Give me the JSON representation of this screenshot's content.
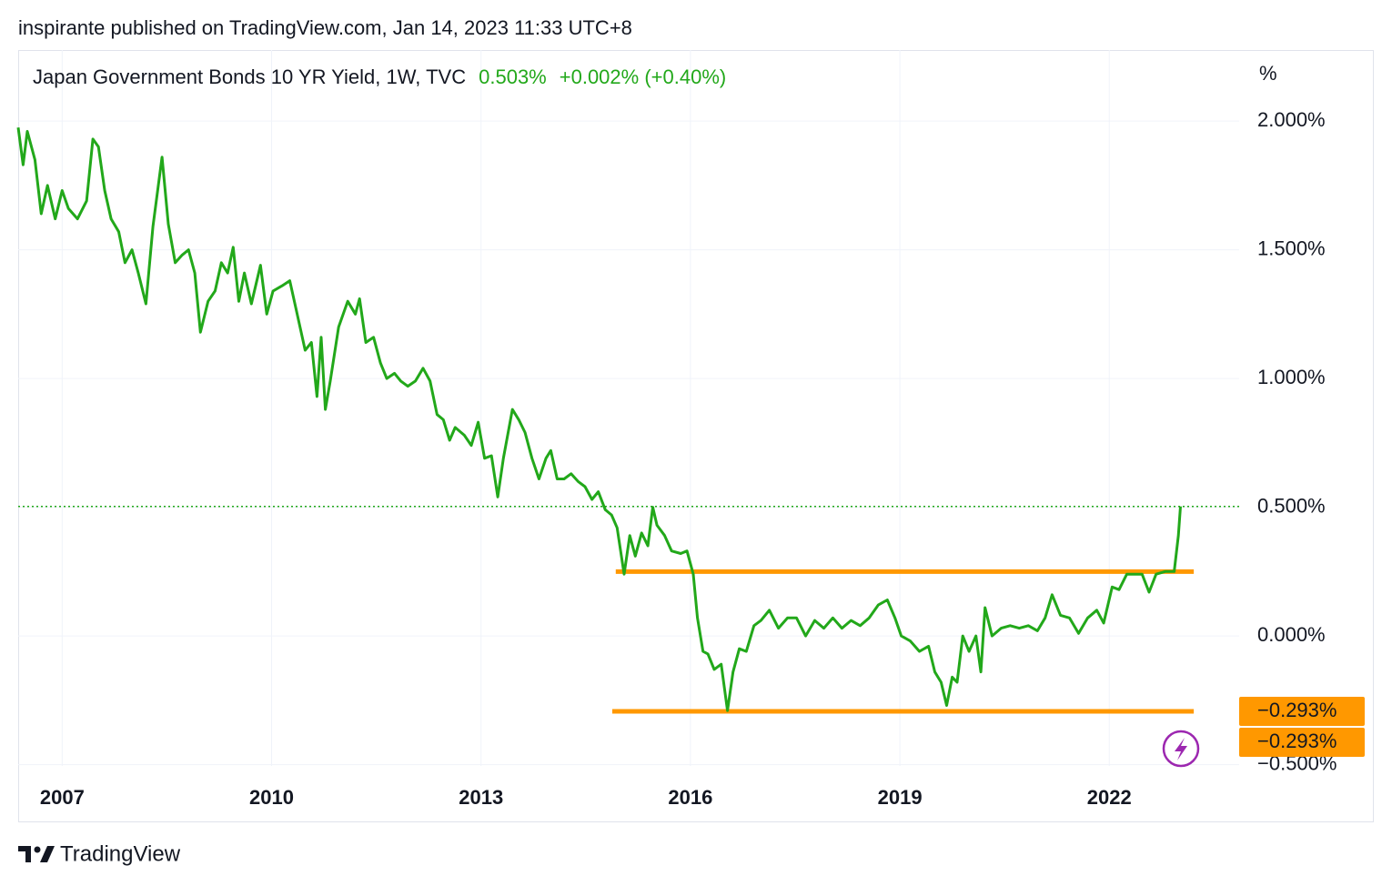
{
  "header": "inspirante published on TradingView.com, Jan 14, 2023 11:33 UTC+8",
  "footer": "TradingView",
  "chart_data": {
    "type": "line",
    "title": "Japan Government Bonds 10 YR Yield, 1W, TVC",
    "last": {
      "value": 0.503,
      "label": "0.503%"
    },
    "change_label": "+0.002% (+0.40%)",
    "unit_label": "%",
    "color": "#22a81a",
    "x": [
      2006.37,
      2006.44,
      2006.5,
      2006.61,
      2006.7,
      2006.79,
      2006.9,
      2007.0,
      2007.09,
      2007.22,
      2007.35,
      2007.44,
      2007.52,
      2007.61,
      2007.7,
      2007.81,
      2007.9,
      2008.0,
      2008.09,
      2008.2,
      2008.3,
      2008.43,
      2008.52,
      2008.62,
      2008.72,
      2008.81,
      2008.9,
      2008.98,
      2009.09,
      2009.19,
      2009.28,
      2009.37,
      2009.45,
      2009.53,
      2009.61,
      2009.71,
      2009.84,
      2009.93,
      2010.02,
      2010.15,
      2010.26,
      2010.35,
      2010.48,
      2010.57,
      2010.65,
      2010.71,
      2010.77,
      2010.84,
      2010.96,
      2011.09,
      2011.2,
      2011.26,
      2011.35,
      2011.46,
      2011.56,
      2011.65,
      2011.76,
      2011.85,
      2011.95,
      2012.06,
      2012.17,
      2012.27,
      2012.37,
      2012.46,
      2012.55,
      2012.63,
      2012.76,
      2012.86,
      2012.96,
      2013.05,
      2013.15,
      2013.24,
      2013.32,
      2013.45,
      2013.54,
      2013.63,
      2013.73,
      2013.83,
      2013.93,
      2014.0,
      2014.09,
      2014.19,
      2014.29,
      2014.39,
      2014.49,
      2014.59,
      2014.68,
      2014.78,
      2014.87,
      2014.95,
      2015.05,
      2015.13,
      2015.21,
      2015.3,
      2015.39,
      2015.46,
      2015.52,
      2015.63,
      2015.73,
      2015.86,
      2015.95,
      2016.04,
      2016.1,
      2016.18,
      2016.25,
      2016.34,
      2016.44,
      2016.53,
      2016.61,
      2016.7,
      2016.8,
      2016.91,
      2017.01,
      2017.13,
      2017.26,
      2017.39,
      2017.52,
      2017.65,
      2017.78,
      2017.91,
      2018.04,
      2018.17,
      2018.3,
      2018.43,
      2018.56,
      2018.69,
      2018.82,
      2018.93,
      2019.02,
      2019.15,
      2019.28,
      2019.41,
      2019.5,
      2019.59,
      2019.67,
      2019.75,
      2019.82,
      2019.9,
      2019.99,
      2020.09,
      2020.16,
      2020.22,
      2020.32,
      2020.45,
      2020.58,
      2020.71,
      2020.84,
      2020.97,
      2021.08,
      2021.18,
      2021.3,
      2021.43,
      2021.56,
      2021.69,
      2021.82,
      2021.92,
      2022.04,
      2022.14,
      2022.25,
      2022.38,
      2022.47,
      2022.57,
      2022.67,
      2022.8,
      2022.93,
      2022.99,
      2023.02
    ],
    "values": [
      1.975,
      1.83,
      1.96,
      1.85,
      1.64,
      1.75,
      1.62,
      1.73,
      1.66,
      1.62,
      1.69,
      1.93,
      1.9,
      1.73,
      1.62,
      1.57,
      1.45,
      1.5,
      1.41,
      1.29,
      1.59,
      1.86,
      1.6,
      1.45,
      1.48,
      1.5,
      1.41,
      1.18,
      1.3,
      1.34,
      1.45,
      1.41,
      1.51,
      1.3,
      1.41,
      1.29,
      1.44,
      1.25,
      1.34,
      1.36,
      1.38,
      1.27,
      1.11,
      1.14,
      0.93,
      1.16,
      0.88,
      0.99,
      1.2,
      1.3,
      1.25,
      1.31,
      1.14,
      1.16,
      1.06,
      1.0,
      1.02,
      0.99,
      0.97,
      0.99,
      1.04,
      0.99,
      0.86,
      0.84,
      0.76,
      0.81,
      0.78,
      0.74,
      0.83,
      0.69,
      0.7,
      0.54,
      0.69,
      0.88,
      0.84,
      0.79,
      0.69,
      0.61,
      0.69,
      0.72,
      0.61,
      0.61,
      0.63,
      0.6,
      0.58,
      0.53,
      0.56,
      0.49,
      0.47,
      0.42,
      0.24,
      0.39,
      0.31,
      0.4,
      0.35,
      0.5,
      0.43,
      0.39,
      0.33,
      0.32,
      0.33,
      0.24,
      0.07,
      -0.06,
      -0.07,
      -0.13,
      -0.11,
      -0.29,
      -0.14,
      -0.05,
      -0.06,
      0.04,
      0.06,
      0.1,
      0.03,
      0.07,
      0.07,
      0.0,
      0.06,
      0.03,
      0.07,
      0.03,
      0.06,
      0.04,
      0.07,
      0.12,
      0.14,
      0.07,
      0.0,
      -0.02,
      -0.06,
      -0.04,
      -0.14,
      -0.18,
      -0.27,
      -0.16,
      -0.18,
      0.0,
      -0.06,
      0.0,
      -0.14,
      0.11,
      0.0,
      0.03,
      0.04,
      0.03,
      0.04,
      0.02,
      0.07,
      0.16,
      0.08,
      0.07,
      0.01,
      0.07,
      0.1,
      0.05,
      0.19,
      0.18,
      0.24,
      0.24,
      0.24,
      0.17,
      0.24,
      0.25,
      0.25,
      0.39,
      0.503
    ],
    "xlim": [
      2006.37,
      2023.86
    ],
    "xticks": [
      2007,
      2010,
      2013,
      2016,
      2019,
      2022
    ],
    "ylim": [
      -0.505,
      2.276
    ],
    "yticks": [
      {
        "value": 2,
        "label": "2.000%"
      },
      {
        "value": 1.5,
        "label": "1.500%"
      },
      {
        "value": 1,
        "label": "1.000%"
      },
      {
        "value": 0.5,
        "label": "0.500%"
      },
      {
        "value": 0,
        "label": "0.000%"
      },
      {
        "value": -0.5,
        "label": "−0.500%"
      }
    ],
    "grid": true,
    "hlines": [
      {
        "value": 0.25,
        "xlim": [
          2014.93,
          2023.21
        ],
        "color": "#ff9800"
      },
      {
        "value": -0.293,
        "xlim": [
          2014.88,
          2023.21
        ],
        "color": "#ff9800"
      }
    ],
    "price_badges": [
      {
        "value": -0.293,
        "label": "−0.293%"
      },
      {
        "value": -0.293,
        "label": "−0.293%"
      }
    ]
  }
}
